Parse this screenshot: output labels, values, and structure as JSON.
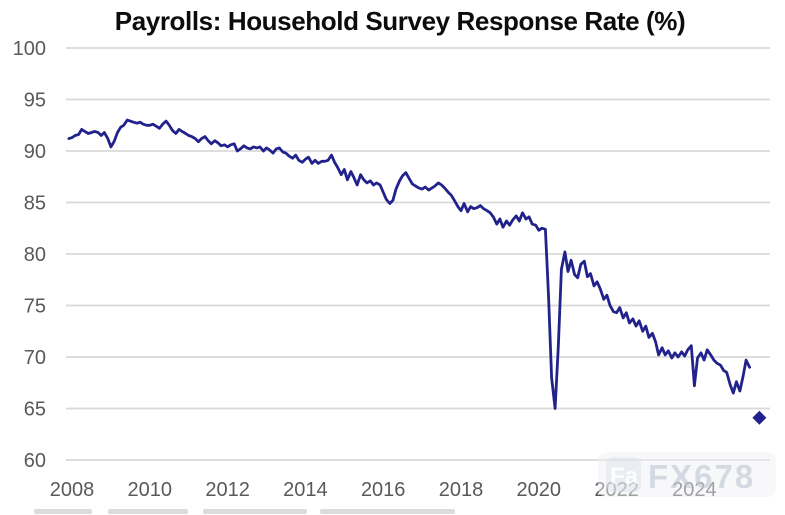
{
  "title": "Payrolls: Household Survey Response Rate (%)",
  "watermark": {
    "text": "FX678",
    "prefix": "Fa"
  },
  "colors": {
    "background": "#ffffff",
    "line": "#22228c",
    "title": "#0c0c0c",
    "axis_label": "#595959",
    "gridline": "#d9d9d9",
    "watermark": "#c3cbd7",
    "footer_smudge": "#9a9a9a"
  },
  "chart_data": {
    "type": "line",
    "title": "Payrolls: Household Survey Response Rate (%)",
    "xlabel": "",
    "ylabel": "",
    "x_ticks": [
      2008,
      2010,
      2012,
      2014,
      2016,
      2018,
      2020,
      2022,
      2024
    ],
    "y_ticks": [
      60,
      65,
      70,
      75,
      80,
      85,
      90,
      95,
      100
    ],
    "xlim": [
      2007.9,
      2026.0
    ],
    "ylim": [
      60,
      100
    ],
    "grid": "horizontal-only",
    "legend_position": "none",
    "series": [
      {
        "name": "Household Survey Response Rate (%)",
        "points": [
          [
            2007.92,
            91.2
          ],
          [
            2008.0,
            91.3
          ],
          [
            2008.08,
            91.5
          ],
          [
            2008.17,
            91.6
          ],
          [
            2008.25,
            92.1
          ],
          [
            2008.33,
            91.9
          ],
          [
            2008.42,
            91.7
          ],
          [
            2008.5,
            91.8
          ],
          [
            2008.58,
            91.9
          ],
          [
            2008.67,
            91.8
          ],
          [
            2008.75,
            91.5
          ],
          [
            2008.83,
            91.8
          ],
          [
            2008.92,
            91.2
          ],
          [
            2009.0,
            90.4
          ],
          [
            2009.08,
            90.9
          ],
          [
            2009.17,
            91.8
          ],
          [
            2009.25,
            92.3
          ],
          [
            2009.33,
            92.5
          ],
          [
            2009.42,
            93.0
          ],
          [
            2009.5,
            92.9
          ],
          [
            2009.58,
            92.8
          ],
          [
            2009.67,
            92.7
          ],
          [
            2009.75,
            92.8
          ],
          [
            2009.83,
            92.6
          ],
          [
            2009.92,
            92.5
          ],
          [
            2010.0,
            92.5
          ],
          [
            2010.08,
            92.6
          ],
          [
            2010.17,
            92.4
          ],
          [
            2010.25,
            92.2
          ],
          [
            2010.33,
            92.6
          ],
          [
            2010.42,
            92.9
          ],
          [
            2010.5,
            92.5
          ],
          [
            2010.58,
            92.0
          ],
          [
            2010.67,
            91.7
          ],
          [
            2010.75,
            92.1
          ],
          [
            2010.83,
            91.9
          ],
          [
            2010.92,
            91.7
          ],
          [
            2011.0,
            91.5
          ],
          [
            2011.08,
            91.4
          ],
          [
            2011.17,
            91.2
          ],
          [
            2011.25,
            90.9
          ],
          [
            2011.33,
            91.2
          ],
          [
            2011.42,
            91.4
          ],
          [
            2011.5,
            91.0
          ],
          [
            2011.58,
            90.7
          ],
          [
            2011.67,
            91.0
          ],
          [
            2011.75,
            90.8
          ],
          [
            2011.83,
            90.5
          ],
          [
            2011.92,
            90.6
          ],
          [
            2012.0,
            90.4
          ],
          [
            2012.08,
            90.6
          ],
          [
            2012.17,
            90.7
          ],
          [
            2012.25,
            90.0
          ],
          [
            2012.33,
            90.2
          ],
          [
            2012.42,
            90.5
          ],
          [
            2012.5,
            90.3
          ],
          [
            2012.58,
            90.2
          ],
          [
            2012.67,
            90.4
          ],
          [
            2012.75,
            90.3
          ],
          [
            2012.83,
            90.4
          ],
          [
            2012.92,
            90.0
          ],
          [
            2013.0,
            90.3
          ],
          [
            2013.08,
            90.1
          ],
          [
            2013.17,
            89.8
          ],
          [
            2013.25,
            90.2
          ],
          [
            2013.33,
            90.3
          ],
          [
            2013.42,
            89.9
          ],
          [
            2013.5,
            89.8
          ],
          [
            2013.58,
            89.5
          ],
          [
            2013.67,
            89.3
          ],
          [
            2013.75,
            89.6
          ],
          [
            2013.83,
            89.1
          ],
          [
            2013.92,
            88.9
          ],
          [
            2014.0,
            89.2
          ],
          [
            2014.08,
            89.4
          ],
          [
            2014.17,
            88.8
          ],
          [
            2014.25,
            89.1
          ],
          [
            2014.33,
            88.8
          ],
          [
            2014.42,
            89.0
          ],
          [
            2014.5,
            89.0
          ],
          [
            2014.58,
            89.1
          ],
          [
            2014.67,
            89.6
          ],
          [
            2014.75,
            88.9
          ],
          [
            2014.83,
            88.4
          ],
          [
            2014.92,
            87.7
          ],
          [
            2015.0,
            88.2
          ],
          [
            2015.08,
            87.2
          ],
          [
            2015.17,
            88.0
          ],
          [
            2015.25,
            87.4
          ],
          [
            2015.33,
            86.7
          ],
          [
            2015.42,
            87.7
          ],
          [
            2015.5,
            87.2
          ],
          [
            2015.58,
            86.9
          ],
          [
            2015.67,
            87.1
          ],
          [
            2015.75,
            86.7
          ],
          [
            2015.83,
            86.9
          ],
          [
            2015.92,
            86.7
          ],
          [
            2016.0,
            86.0
          ],
          [
            2016.08,
            85.3
          ],
          [
            2016.17,
            84.9
          ],
          [
            2016.25,
            85.2
          ],
          [
            2016.33,
            86.3
          ],
          [
            2016.42,
            87.1
          ],
          [
            2016.5,
            87.6
          ],
          [
            2016.58,
            87.9
          ],
          [
            2016.67,
            87.3
          ],
          [
            2016.75,
            86.8
          ],
          [
            2016.83,
            86.6
          ],
          [
            2016.92,
            86.4
          ],
          [
            2017.0,
            86.3
          ],
          [
            2017.08,
            86.5
          ],
          [
            2017.17,
            86.2
          ],
          [
            2017.25,
            86.4
          ],
          [
            2017.33,
            86.6
          ],
          [
            2017.42,
            86.9
          ],
          [
            2017.5,
            86.7
          ],
          [
            2017.58,
            86.4
          ],
          [
            2017.67,
            86.0
          ],
          [
            2017.75,
            85.7
          ],
          [
            2017.83,
            85.2
          ],
          [
            2017.92,
            84.6
          ],
          [
            2018.0,
            84.2
          ],
          [
            2018.08,
            84.9
          ],
          [
            2018.17,
            84.1
          ],
          [
            2018.25,
            84.6
          ],
          [
            2018.33,
            84.4
          ],
          [
            2018.42,
            84.5
          ],
          [
            2018.5,
            84.7
          ],
          [
            2018.58,
            84.4
          ],
          [
            2018.67,
            84.2
          ],
          [
            2018.75,
            84.0
          ],
          [
            2018.83,
            83.6
          ],
          [
            2018.92,
            82.9
          ],
          [
            2019.0,
            83.4
          ],
          [
            2019.08,
            82.6
          ],
          [
            2019.17,
            83.2
          ],
          [
            2019.25,
            82.8
          ],
          [
            2019.33,
            83.3
          ],
          [
            2019.42,
            83.7
          ],
          [
            2019.5,
            83.2
          ],
          [
            2019.58,
            84.0
          ],
          [
            2019.67,
            83.4
          ],
          [
            2019.75,
            83.6
          ],
          [
            2019.83,
            82.9
          ],
          [
            2019.92,
            82.8
          ],
          [
            2020.0,
            82.3
          ],
          [
            2020.08,
            82.5
          ],
          [
            2020.17,
            82.4
          ],
          [
            2020.25,
            76.0
          ],
          [
            2020.33,
            68.0
          ],
          [
            2020.42,
            65.0
          ],
          [
            2020.5,
            71.0
          ],
          [
            2020.58,
            78.5
          ],
          [
            2020.67,
            80.2
          ],
          [
            2020.75,
            78.3
          ],
          [
            2020.83,
            79.4
          ],
          [
            2020.92,
            78.0
          ],
          [
            2021.0,
            77.7
          ],
          [
            2021.08,
            79.0
          ],
          [
            2021.17,
            79.3
          ],
          [
            2021.25,
            77.8
          ],
          [
            2021.33,
            78.1
          ],
          [
            2021.42,
            76.9
          ],
          [
            2021.5,
            77.3
          ],
          [
            2021.58,
            76.6
          ],
          [
            2021.67,
            75.6
          ],
          [
            2021.75,
            76.0
          ],
          [
            2021.83,
            75.0
          ],
          [
            2021.92,
            74.4
          ],
          [
            2022.0,
            74.3
          ],
          [
            2022.08,
            74.8
          ],
          [
            2022.17,
            73.8
          ],
          [
            2022.25,
            74.3
          ],
          [
            2022.33,
            73.3
          ],
          [
            2022.42,
            73.7
          ],
          [
            2022.5,
            73.0
          ],
          [
            2022.58,
            73.5
          ],
          [
            2022.67,
            72.5
          ],
          [
            2022.75,
            73.0
          ],
          [
            2022.83,
            71.9
          ],
          [
            2022.92,
            72.3
          ],
          [
            2023.0,
            71.5
          ],
          [
            2023.08,
            70.2
          ],
          [
            2023.17,
            70.9
          ],
          [
            2023.25,
            70.2
          ],
          [
            2023.33,
            70.6
          ],
          [
            2023.42,
            69.9
          ],
          [
            2023.5,
            70.4
          ],
          [
            2023.58,
            70.0
          ],
          [
            2023.67,
            70.5
          ],
          [
            2023.75,
            70.1
          ],
          [
            2023.83,
            70.7
          ],
          [
            2023.92,
            71.1
          ],
          [
            2024.0,
            67.2
          ],
          [
            2024.08,
            69.9
          ],
          [
            2024.17,
            70.4
          ],
          [
            2024.25,
            69.7
          ],
          [
            2024.33,
            70.7
          ],
          [
            2024.42,
            70.2
          ],
          [
            2024.5,
            69.7
          ],
          [
            2024.58,
            69.4
          ],
          [
            2024.67,
            69.2
          ],
          [
            2024.75,
            68.7
          ],
          [
            2024.83,
            68.5
          ],
          [
            2024.92,
            67.3
          ],
          [
            2025.0,
            66.5
          ],
          [
            2025.08,
            67.6
          ],
          [
            2025.17,
            66.7
          ],
          [
            2025.25,
            68.1
          ],
          [
            2025.33,
            69.7
          ],
          [
            2025.42,
            69.0
          ]
        ]
      }
    ],
    "latest_point": {
      "x": 2025.67,
      "y": 64.1,
      "marker": "diamond"
    }
  }
}
